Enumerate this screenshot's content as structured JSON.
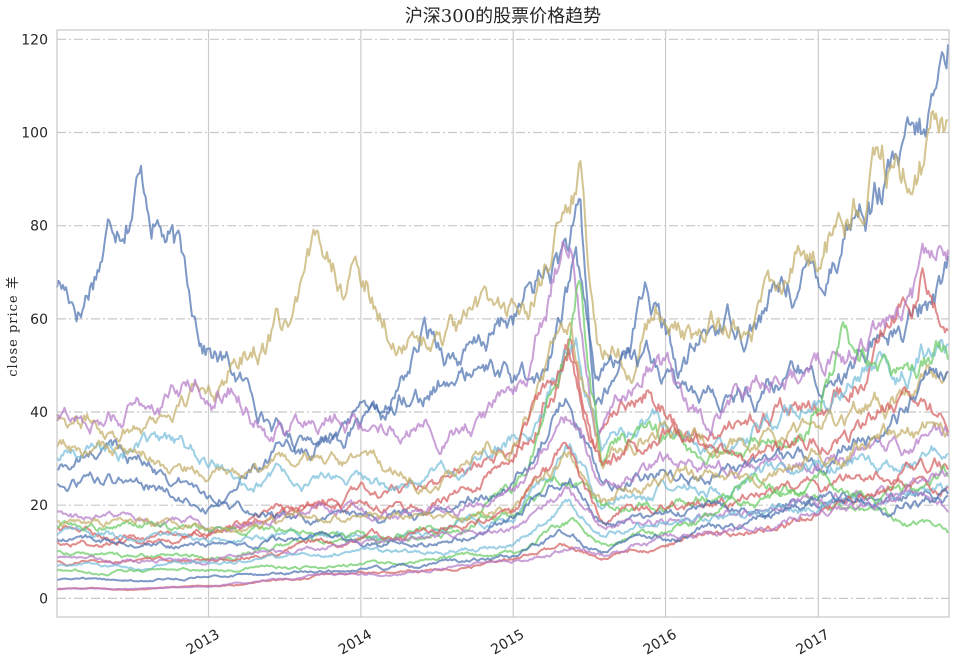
{
  "chart_data": {
    "type": "line",
    "title": "沪深300的股票价格趋势",
    "xlabel": "",
    "ylabel": "close price 羊",
    "x_range": [
      "2012-01-04",
      "2017-11-10"
    ],
    "ylim": [
      -4,
      122
    ],
    "y_ticks": [
      0,
      20,
      40,
      60,
      80,
      100,
      120
    ],
    "x_ticks": [
      "2013",
      "2014",
      "2015",
      "2016",
      "2017"
    ],
    "grid": {
      "vertical": "solid",
      "horizontal": "dash-dot"
    },
    "legend": "none",
    "palette": [
      "#4c72b0",
      "#c4ad66",
      "#d65f5f",
      "#b47cc7",
      "#77bedb",
      "#6acc65",
      "#4c72b0",
      "#c4ad66",
      "#d65f5f",
      "#b47cc7",
      "#77bedb",
      "#6acc65"
    ],
    "series": [
      {
        "color": "#4c72b0",
        "dates": [
          "2012-01-04",
          "2012-03-01",
          "2012-05-01",
          "2012-07-15",
          "2012-10-01",
          "2012-12-20",
          "2013-04-01",
          "2013-08-01",
          "2013-12-15",
          "2014-03-01",
          "2014-06-01",
          "2014-10-01",
          "2015-01-15",
          "2015-04-01",
          "2015-06-10",
          "2015-07-15",
          "2015-09-01",
          "2015-11-15",
          "2016-02-01",
          "2016-05-01",
          "2016-08-01",
          "2016-11-01",
          "2017-01-15",
          "2017-03-15",
          "2017-05-15",
          "2017-07-15",
          "2017-09-15",
          "2017-11-10"
        ],
        "values": [
          68,
          64,
          80,
          95,
          78,
          57,
          45,
          33,
          37,
          36,
          55,
          52,
          61,
          70,
          78,
          40,
          45,
          68,
          48,
          58,
          62,
          68,
          70,
          85,
          88,
          90,
          94,
          116
        ]
      },
      {
        "color": "#c4ad66",
        "dates": [
          "2012-01-04",
          "2012-06-01",
          "2012-12-01",
          "2013-04-01",
          "2013-08-01",
          "2013-10-15",
          "2014-01-15",
          "2014-05-01",
          "2014-09-01",
          "2015-01-01",
          "2015-04-01",
          "2015-06-10",
          "2015-07-20",
          "2015-10-01",
          "2015-12-10",
          "2016-03-01",
          "2016-07-01",
          "2016-11-01",
          "2017-01-15",
          "2017-04-01",
          "2017-06-01",
          "2017-08-15",
          "2017-11-10"
        ],
        "values": [
          40,
          38,
          43,
          55,
          60,
          75,
          67,
          55,
          55,
          62,
          68,
          90,
          55,
          57,
          64,
          55,
          60,
          70,
          75,
          84,
          94,
          88,
          100
        ]
      },
      {
        "color": "#4c72b0",
        "dates": [
          "2012-01-04",
          "2012-06-01",
          "2013-01-01",
          "2013-06-01",
          "2014-01-01",
          "2014-05-01",
          "2014-10-01",
          "2015-03-01",
          "2015-06-01",
          "2015-07-15",
          "2015-10-01",
          "2016-03-01",
          "2016-09-01",
          "2017-03-01",
          "2017-08-01",
          "2017-11-10"
        ],
        "values": [
          28,
          33,
          22,
          30,
          36,
          47,
          48,
          45,
          72,
          42,
          55,
          40,
          45,
          50,
          60,
          70
        ]
      },
      {
        "color": "#d65f5f",
        "dates": [
          "2012-01-04",
          "2012-06-01",
          "2013-01-01",
          "2013-06-01",
          "2014-01-01",
          "2014-08-01",
          "2015-02-01",
          "2015-05-15",
          "2015-07-15",
          "2015-11-15",
          "2016-03-01",
          "2016-08-01",
          "2017-01-01",
          "2017-05-01",
          "2017-09-01",
          "2017-11-10"
        ],
        "values": [
          15,
          13,
          14,
          17,
          22,
          25,
          38,
          55,
          30,
          45,
          36,
          40,
          42,
          50,
          70,
          60
        ]
      },
      {
        "color": "#b47cc7",
        "dates": [
          "2012-01-04",
          "2012-06-01",
          "2012-12-01",
          "2013-03-01",
          "2013-06-01",
          "2013-10-01",
          "2014-02-01",
          "2014-08-01",
          "2015-02-01",
          "2015-05-15",
          "2015-07-15",
          "2015-12-01",
          "2016-04-01",
          "2016-10-01",
          "2017-02-01",
          "2017-06-01",
          "2017-11-10"
        ],
        "values": [
          38,
          40,
          45,
          48,
          35,
          42,
          40,
          36,
          45,
          80,
          35,
          55,
          40,
          48,
          52,
          60,
          68
        ]
      },
      {
        "color": "#77bedb",
        "dates": [
          "2012-01-04",
          "2012-08-01",
          "2013-02-01",
          "2013-08-01",
          "2014-03-01",
          "2014-09-01",
          "2015-03-01",
          "2015-06-01",
          "2015-08-01",
          "2015-12-01",
          "2016-05-01",
          "2016-10-01",
          "2017-03-01",
          "2017-08-01",
          "2017-11-10"
        ],
        "values": [
          30,
          33,
          28,
          25,
          24,
          28,
          38,
          60,
          32,
          40,
          33,
          40,
          45,
          50,
          58
        ]
      },
      {
        "color": "#6acc65",
        "dates": [
          "2012-01-04",
          "2012-08-01",
          "2013-02-01",
          "2013-09-01",
          "2014-04-01",
          "2014-10-01",
          "2015-02-01",
          "2015-05-01",
          "2015-06-10",
          "2015-08-01",
          "2015-12-01",
          "2016-05-01",
          "2016-12-01",
          "2017-03-01",
          "2017-07-01",
          "2017-11-10"
        ],
        "values": [
          10,
          9,
          9,
          12,
          13,
          17,
          28,
          50,
          70,
          30,
          35,
          30,
          36,
          55,
          45,
          52
        ]
      },
      {
        "color": "#c4ad66",
        "dates": [
          "2012-01-04",
          "2012-08-01",
          "2013-03-01",
          "2013-10-01",
          "2014-06-01",
          "2015-01-01",
          "2015-05-15",
          "2015-08-01",
          "2016-01-01",
          "2016-08-01",
          "2017-01-01",
          "2017-06-01",
          "2017-11-10"
        ],
        "values": [
          32,
          30,
          25,
          28,
          26,
          35,
          60,
          30,
          38,
          32,
          38,
          42,
          46
        ]
      },
      {
        "color": "#d65f5f",
        "dates": [
          "2012-01-04",
          "2012-08-01",
          "2013-03-01",
          "2013-10-01",
          "2014-06-01",
          "2015-01-01",
          "2015-05-15",
          "2015-08-01",
          "2016-01-01",
          "2016-08-01",
          "2017-01-01",
          "2017-06-01",
          "2017-11-10"
        ],
        "values": [
          12,
          12,
          15,
          22,
          20,
          28,
          55,
          30,
          34,
          30,
          34,
          40,
          38
        ]
      },
      {
        "color": "#4c72b0",
        "dates": [
          "2012-01-04",
          "2012-08-01",
          "2013-03-01",
          "2013-10-01",
          "2014-06-01",
          "2015-01-01",
          "2015-05-15",
          "2015-08-01",
          "2016-01-01",
          "2016-08-01",
          "2017-01-01",
          "2017-06-01",
          "2017-11-10"
        ],
        "values": [
          24,
          25,
          18,
          17,
          18,
          24,
          45,
          25,
          28,
          26,
          30,
          35,
          48
        ]
      },
      {
        "color": "#b47cc7",
        "dates": [
          "2012-01-04",
          "2012-08-01",
          "2013-03-01",
          "2013-10-01",
          "2014-06-01",
          "2015-01-01",
          "2015-05-15",
          "2015-08-01",
          "2016-01-01",
          "2016-08-01",
          "2017-01-01",
          "2017-06-01",
          "2017-11-10"
        ],
        "values": [
          18,
          16,
          15,
          20,
          18,
          22,
          38,
          25,
          30,
          28,
          30,
          32,
          34
        ]
      },
      {
        "color": "#77bedb",
        "dates": [
          "2012-01-04",
          "2012-08-01",
          "2013-03-01",
          "2013-10-01",
          "2014-06-01",
          "2015-01-01",
          "2015-05-15",
          "2015-08-01",
          "2016-01-01",
          "2016-08-01",
          "2017-01-01",
          "2017-06-01",
          "2017-11-10"
        ],
        "values": [
          14,
          13,
          12,
          14,
          14,
          18,
          32,
          20,
          24,
          25,
          28,
          30,
          32
        ]
      },
      {
        "color": "#6acc65",
        "dates": [
          "2012-01-04",
          "2012-08-01",
          "2013-03-01",
          "2013-10-01",
          "2014-06-01",
          "2015-01-01",
          "2015-05-15",
          "2015-08-01",
          "2016-01-01",
          "2016-08-01",
          "2017-01-01",
          "2017-06-01",
          "2017-11-10"
        ],
        "values": [
          16,
          15,
          14,
          15,
          13,
          18,
          28,
          18,
          20,
          25,
          22,
          18,
          14
        ]
      },
      {
        "color": "#c4ad66",
        "dates": [
          "2012-01-04",
          "2012-08-01",
          "2013-03-01",
          "2013-10-01",
          "2014-06-01",
          "2015-01-01",
          "2015-05-15",
          "2015-08-01",
          "2016-01-01",
          "2016-08-01",
          "2017-01-01",
          "2017-06-01",
          "2017-11-10"
        ],
        "values": [
          17,
          16,
          15,
          18,
          17,
          20,
          30,
          22,
          25,
          26,
          30,
          34,
          36
        ]
      },
      {
        "color": "#d65f5f",
        "dates": [
          "2012-01-04",
          "2012-08-01",
          "2013-03-01",
          "2013-10-01",
          "2014-06-01",
          "2015-01-01",
          "2015-05-15",
          "2015-08-01",
          "2016-01-01",
          "2016-08-01",
          "2017-01-01",
          "2017-06-01",
          "2017-11-10"
        ],
        "values": [
          8,
          8,
          9,
          12,
          14,
          18,
          32,
          16,
          20,
          22,
          24,
          26,
          30
        ]
      },
      {
        "color": "#4c72b0",
        "dates": [
          "2012-01-04",
          "2012-08-01",
          "2013-03-01",
          "2013-10-01",
          "2014-06-01",
          "2015-01-01",
          "2015-05-15",
          "2015-08-01",
          "2016-01-01",
          "2016-08-01",
          "2017-01-01",
          "2017-06-01",
          "2017-11-10"
        ],
        "values": [
          13,
          12,
          11,
          13,
          12,
          16,
          28,
          17,
          18,
          20,
          21,
          22,
          22
        ]
      },
      {
        "color": "#b47cc7",
        "dates": [
          "2012-01-04",
          "2012-08-01",
          "2013-03-01",
          "2013-10-01",
          "2014-06-01",
          "2015-01-01",
          "2015-05-15",
          "2015-08-01",
          "2016-01-01",
          "2016-08-01",
          "2017-01-01",
          "2017-06-01",
          "2017-11-10"
        ],
        "values": [
          9,
          8,
          9,
          11,
          12,
          15,
          24,
          15,
          17,
          18,
          20,
          22,
          20
        ]
      },
      {
        "color": "#77bedb",
        "dates": [
          "2012-01-04",
          "2012-08-01",
          "2013-03-01",
          "2013-10-01",
          "2014-06-01",
          "2015-01-01",
          "2015-05-15",
          "2015-08-01",
          "2016-01-01",
          "2016-08-01",
          "2017-01-01",
          "2017-06-01",
          "2017-11-10"
        ],
        "values": [
          7,
          7,
          8,
          9,
          10,
          12,
          20,
          14,
          16,
          18,
          20,
          22,
          24
        ]
      },
      {
        "color": "#6acc65",
        "dates": [
          "2012-01-04",
          "2012-08-01",
          "2013-03-01",
          "2013-10-01",
          "2014-06-01",
          "2015-01-01",
          "2015-05-15",
          "2015-08-01",
          "2016-01-01",
          "2016-08-01",
          "2017-01-01",
          "2017-06-01",
          "2017-11-10"
        ],
        "values": [
          6,
          6,
          6,
          7,
          8,
          10,
          16,
          12,
          14,
          20,
          24,
          22,
          25
        ]
      },
      {
        "color": "#d65f5f",
        "dates": [
          "2012-01-04",
          "2012-08-01",
          "2013-03-01",
          "2013-10-01",
          "2014-06-01",
          "2015-01-01",
          "2015-05-15",
          "2015-08-01",
          "2016-01-01",
          "2016-08-01",
          "2017-01-01",
          "2017-06-01",
          "2017-11-10"
        ],
        "values": [
          2,
          2,
          3,
          5,
          6,
          8,
          12,
          9,
          12,
          15,
          18,
          22,
          24
        ]
      },
      {
        "color": "#4c72b0",
        "dates": [
          "2012-01-04",
          "2012-08-01",
          "2013-03-01",
          "2013-10-01",
          "2014-06-01",
          "2015-01-01",
          "2015-05-15",
          "2015-08-01",
          "2016-01-01",
          "2016-08-01",
          "2017-01-01",
          "2017-06-01",
          "2017-11-10"
        ],
        "values": [
          4,
          4,
          5,
          6,
          7,
          9,
          14,
          10,
          13,
          17,
          20,
          22,
          23
        ]
      },
      {
        "color": "#b47cc7",
        "dates": [
          "2012-01-04",
          "2012-08-01",
          "2013-03-01",
          "2013-10-01",
          "2014-06-01",
          "2015-01-01",
          "2015-05-15",
          "2015-08-01",
          "2016-01-01",
          "2016-08-01",
          "2017-01-01",
          "2017-06-01",
          "2017-11-10"
        ],
        "values": [
          2,
          2,
          3,
          5,
          6,
          8,
          11,
          9,
          12,
          16,
          19,
          22,
          26
        ]
      }
    ]
  }
}
